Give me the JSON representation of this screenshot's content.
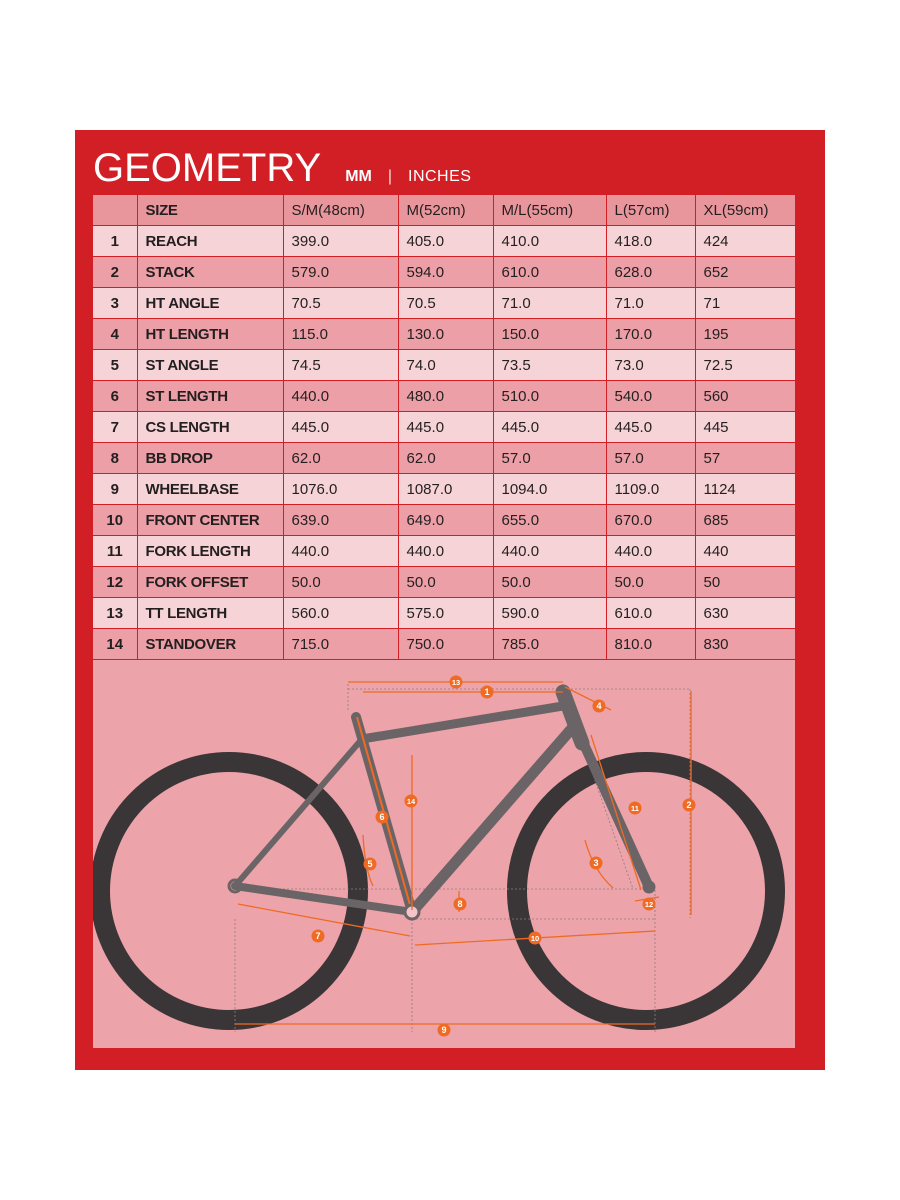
{
  "header": {
    "title": "GEOMETRY",
    "unit_mm": "MM",
    "separator": "|",
    "unit_inches": "INCHES"
  },
  "table": {
    "header": [
      "SIZE",
      "S/M(48cm)",
      "M(52cm)",
      "M/L(55cm)",
      "L(57cm)",
      "XL(59cm)"
    ],
    "rows": [
      {
        "num": "1",
        "label": "REACH",
        "values": [
          "399.0",
          "405.0",
          "410.0",
          "418.0",
          "424"
        ]
      },
      {
        "num": "2",
        "label": "STACK",
        "values": [
          "579.0",
          "594.0",
          "610.0",
          "628.0",
          "652"
        ]
      },
      {
        "num": "3",
        "label": "HT ANGLE",
        "values": [
          "70.5",
          "70.5",
          "71.0",
          "71.0",
          "71"
        ]
      },
      {
        "num": "4",
        "label": "HT LENGTH",
        "values": [
          "115.0",
          "130.0",
          "150.0",
          "170.0",
          "195"
        ]
      },
      {
        "num": "5",
        "label": "ST ANGLE",
        "values": [
          "74.5",
          "74.0",
          "73.5",
          "73.0",
          "72.5"
        ]
      },
      {
        "num": "6",
        "label": "ST LENGTH",
        "values": [
          "440.0",
          "480.0",
          "510.0",
          "540.0",
          "560"
        ]
      },
      {
        "num": "7",
        "label": "CS LENGTH",
        "values": [
          "445.0",
          "445.0",
          "445.0",
          "445.0",
          "445"
        ]
      },
      {
        "num": "8",
        "label": "BB DROP",
        "values": [
          "62.0",
          "62.0",
          "57.0",
          "57.0",
          "57"
        ]
      },
      {
        "num": "9",
        "label": "WHEELBASE",
        "values": [
          "1076.0",
          "1087.0",
          "1094.0",
          "1109.0",
          "1124"
        ]
      },
      {
        "num": "10",
        "label": "FRONT CENTER",
        "values": [
          "639.0",
          "649.0",
          "655.0",
          "670.0",
          "685"
        ]
      },
      {
        "num": "11",
        "label": "FORK LENGTH",
        "values": [
          "440.0",
          "440.0",
          "440.0",
          "440.0",
          "440"
        ]
      },
      {
        "num": "12",
        "label": "FORK OFFSET",
        "values": [
          "50.0",
          "50.0",
          "50.0",
          "50.0",
          "50"
        ]
      },
      {
        "num": "13",
        "label": "TT LENGTH",
        "values": [
          "560.0",
          "575.0",
          "590.0",
          "610.0",
          "630"
        ]
      },
      {
        "num": "14",
        "label": "STANDOVER",
        "values": [
          "715.0",
          "750.0",
          "785.0",
          "810.0",
          "830"
        ]
      }
    ]
  },
  "diagram": {
    "markers": [
      "1",
      "2",
      "3",
      "4",
      "5",
      "6",
      "7",
      "8",
      "9",
      "10",
      "11",
      "12",
      "13",
      "14"
    ]
  },
  "colors": {
    "brand_red": "#d21f26",
    "row_light": "#f6d3d6",
    "row_dark": "#ec9fa6",
    "diagram_bg": "#eca3a9",
    "frame_gray": "#6b6466",
    "tire_dark": "#3a3536",
    "dimension_orange": "#ef6b24"
  }
}
